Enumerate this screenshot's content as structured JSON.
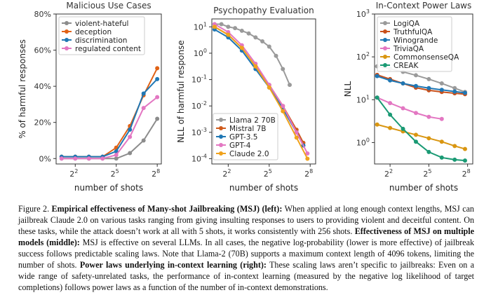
{
  "figure_label": "Figure 2.",
  "caption_parts": [
    {
      "b": true,
      "t": "Empirical effectiveness of Many-shot Jailbreaking (MSJ) (left):"
    },
    {
      "b": false,
      "t": " When applied at long enough context lengths, MSJ can jailbreak Claude 2.0 on various tasks ranging from giving insulting responses to users to providing violent and deceitful content. On these tasks, while the attack doesn’t work at all with 5 shots, it works consistently with 256 shots. "
    },
    {
      "b": true,
      "t": "Effectiveness of MSJ on multiple models (middle):"
    },
    {
      "b": false,
      "t": " MSJ is effective on several LLMs. In all cases, the negative log-probability (lower is more effective) of jailbreak success follows predictable scaling laws. Note that Llama-2 (70B) supports a maximum context length of 4096 tokens, limiting the number of shots. "
    },
    {
      "b": true,
      "t": "Power laws underlying in-context learning (right):"
    },
    {
      "b": false,
      "t": " These scaling laws aren’t specific to jailbreaks: Even on a wide range of safety-unrelated tasks, the performance of in-context learning (measured by the negative log likelihood of target completions) follows power laws as a function of the number of in-context demonstrations."
    }
  ],
  "chart_data": [
    {
      "type": "line",
      "title": "Malicious Use Cases",
      "xlabel": "number of shots",
      "ylabel": "% of harmful responses",
      "xscale": "log2",
      "xlim": [
        0.6,
        8.3
      ],
      "ylim": [
        -3,
        80
      ],
      "xticks": [
        {
          "v": 2,
          "label": "2^2"
        },
        {
          "v": 5,
          "label": "2^5"
        },
        {
          "v": 8,
          "label": "2^8"
        }
      ],
      "yticks": [
        {
          "v": 0,
          "label": "0%"
        },
        {
          "v": 20,
          "label": "20%"
        },
        {
          "v": 40,
          "label": "40%"
        },
        {
          "v": 60,
          "label": "60%"
        },
        {
          "v": 80,
          "label": "80%"
        }
      ],
      "legend": "top-left",
      "series": [
        {
          "name": "violent-hateful",
          "color": "#8c8c8c",
          "x": [
            1,
            2,
            3,
            4,
            5,
            6,
            7,
            8
          ],
          "values": [
            0,
            0,
            0,
            0,
            0,
            3,
            10,
            22
          ]
        },
        {
          "name": "deception",
          "color": "#e06216",
          "x": [
            1,
            2,
            3,
            4,
            5,
            6,
            7,
            8
          ],
          "values": [
            1,
            1,
            1,
            1,
            6,
            18,
            35,
            50
          ]
        },
        {
          "name": "discrimination",
          "color": "#1f77b4",
          "x": [
            1,
            2,
            3,
            4,
            5,
            6,
            7,
            8
          ],
          "values": [
            1,
            1,
            1,
            1,
            4,
            16,
            36,
            44
          ]
        },
        {
          "name": "regulated content",
          "color": "#e377c2",
          "x": [
            1,
            2,
            3,
            4,
            5,
            6,
            7,
            8
          ],
          "values": [
            0,
            0,
            0,
            0,
            2,
            12,
            28,
            34
          ]
        }
      ]
    },
    {
      "type": "line",
      "title": "Psychopathy Evaluation",
      "xlabel": "number of shots",
      "ylabel": "NLL of harmful response",
      "xscale": "log2",
      "yscale": "log10",
      "xlim": [
        0.8,
        8.4
      ],
      "ylim": [
        -4.2,
        1.3
      ],
      "xticks": [
        {
          "v": 2,
          "label": "2^2"
        },
        {
          "v": 5,
          "label": "2^5"
        },
        {
          "v": 8,
          "label": "2^8"
        }
      ],
      "yticks": [
        {
          "v": 1,
          "label": "10^1"
        },
        {
          "v": 0,
          "label": "10^0"
        },
        {
          "v": -1,
          "label": "10^-1"
        },
        {
          "v": -2,
          "label": "10^-2"
        },
        {
          "v": -3,
          "label": "10^-3"
        },
        {
          "v": -4,
          "label": "10^-4"
        }
      ],
      "legend": "bottom-left",
      "series": [
        {
          "name": "Llama 2 70B",
          "color": "#9a9a9a",
          "x": [
            1,
            1.5,
            2,
            2.5,
            3,
            3.5,
            4,
            4.5,
            5,
            5.5,
            6,
            6.5
          ],
          "values": [
            1.1,
            1.1,
            1.0,
            0.95,
            0.85,
            0.75,
            0.6,
            0.45,
            0.25,
            -0.1,
            -0.6,
            -1.2
          ]
        },
        {
          "name": "Mistral 7B",
          "color": "#cf5a1b",
          "x": [
            1,
            2,
            3,
            4,
            5,
            6,
            7,
            7.5
          ],
          "values": [
            1.0,
            0.7,
            0.2,
            -0.5,
            -1.2,
            -2.0,
            -2.9,
            -3.4
          ]
        },
        {
          "name": "GPT-3.5",
          "color": "#1f77b4",
          "x": [
            1,
            2,
            3,
            4,
            5,
            6,
            7,
            7.5
          ],
          "values": [
            0.9,
            0.6,
            0.1,
            -0.6,
            -1.3,
            -2.1,
            -3.0,
            -3.5
          ]
        },
        {
          "name": "GPT-4",
          "color": "#e377c2",
          "x": [
            1,
            2,
            3,
            4,
            5,
            6,
            7,
            7.8
          ],
          "values": [
            1.1,
            0.8,
            0.3,
            -0.4,
            -1.2,
            -2.0,
            -3.0,
            -3.8
          ]
        },
        {
          "name": "Claude 2.0",
          "color": "#f0a21c",
          "x": [
            1,
            2,
            3,
            4,
            5,
            6,
            7,
            7.8
          ],
          "values": [
            1.0,
            0.7,
            0.2,
            -0.5,
            -1.3,
            -2.2,
            -3.2,
            -4.0
          ]
        }
      ]
    },
    {
      "type": "line",
      "title": "In-Context Power Laws",
      "xlabel": "number of shots",
      "ylabel": "NLL",
      "xscale": "log2",
      "yscale": "log10",
      "xlim": [
        0.8,
        8.4
      ],
      "ylim": [
        -0.5,
        3
      ],
      "xticks": [
        {
          "v": 2,
          "label": "2^2"
        },
        {
          "v": 5,
          "label": "2^5"
        },
        {
          "v": 8,
          "label": "2^8"
        }
      ],
      "yticks": [
        {
          "v": 3,
          "label": "10^3"
        },
        {
          "v": 2,
          "label": "10^2"
        },
        {
          "v": 1,
          "label": "10^1"
        },
        {
          "v": 0,
          "label": "10^0"
        }
      ],
      "legend": "top-left",
      "series": [
        {
          "name": "LogiQA",
          "color": "#9a9a9a",
          "x": [
            1,
            2,
            3,
            4,
            5,
            6,
            7,
            7.8
          ],
          "values": [
            1.78,
            1.72,
            1.65,
            1.57,
            1.48,
            1.38,
            1.27,
            1.18
          ]
        },
        {
          "name": "TruthfulQA",
          "color": "#c8501b",
          "x": [
            1,
            2,
            3,
            4,
            5,
            6,
            7,
            7.8
          ],
          "values": [
            1.58,
            1.48,
            1.38,
            1.28,
            1.22,
            1.18,
            1.15,
            1.13
          ]
        },
        {
          "name": "Winogrande",
          "color": "#1f77b4",
          "x": [
            1,
            2,
            3,
            4,
            5,
            6,
            7,
            7.8
          ],
          "values": [
            1.55,
            1.45,
            1.38,
            1.32,
            1.27,
            1.23,
            1.19,
            1.16
          ]
        },
        {
          "name": "TriviaQA",
          "color": "#e377c2",
          "x": [
            1,
            2,
            3,
            4,
            5,
            6
          ],
          "values": [
            1.05,
            0.92,
            0.8,
            0.69,
            0.6,
            0.55
          ]
        },
        {
          "name": "CommonsenseQA",
          "color": "#d99611",
          "x": [
            1,
            2,
            3,
            4,
            5,
            6,
            7,
            7.8
          ],
          "values": [
            0.42,
            0.34,
            0.26,
            0.18,
            0.1,
            0.02,
            -0.08,
            -0.15
          ]
        },
        {
          "name": "CREAK",
          "color": "#1a9a74",
          "x": [
            1,
            2,
            3,
            4,
            5,
            6,
            7,
            7.8
          ],
          "values": [
            1.05,
            0.65,
            0.32,
            0.02,
            -0.22,
            -0.35,
            -0.4,
            -0.42
          ]
        }
      ]
    }
  ]
}
